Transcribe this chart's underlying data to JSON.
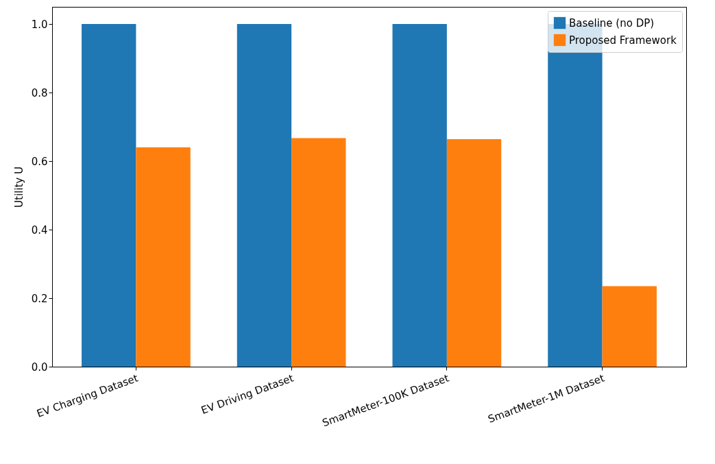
{
  "chart_data": {
    "type": "bar",
    "ylabel": "Utility U",
    "categories": [
      "EV Charging Dataset",
      "EV Driving Dataset",
      "SmartMeter-100K Dataset",
      "SmartMeter-1M Dataset"
    ],
    "series": [
      {
        "name": "Baseline (no DP)",
        "color": "#1f77b4",
        "values": [
          1.0,
          1.0,
          1.0,
          1.0
        ]
      },
      {
        "name": "Proposed Framework",
        "color": "#ff7f0e",
        "values": [
          0.64,
          0.667,
          0.664,
          0.235
        ]
      }
    ],
    "ylim": [
      0,
      1.05
    ],
    "yticks": [
      {
        "value": 0,
        "label": "0.0"
      },
      {
        "value": 0.2,
        "label": "0.2"
      },
      {
        "value": 0.4,
        "label": "0.4"
      },
      {
        "value": 0.6,
        "label": "0.6"
      },
      {
        "value": 0.8,
        "label": "0.8"
      },
      {
        "value": 1.0,
        "label": "1.0"
      }
    ],
    "grid": false,
    "legend": "top right"
  }
}
